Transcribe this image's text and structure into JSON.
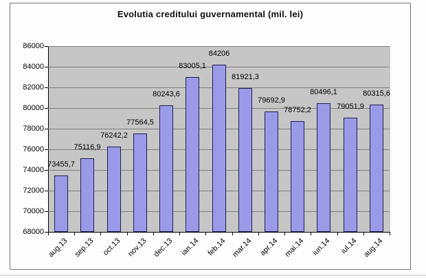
{
  "chart_data": {
    "type": "bar",
    "title": "Evolutia creditului guvernamental (mil. lei)",
    "categories": [
      "aug.13",
      "sep.13",
      "oct.13",
      "nov.13",
      "dec.13",
      "ian.14",
      "feb.14",
      "mar.14",
      "apr.14",
      "mai.14",
      "iun.14",
      "iul.14",
      "aug.14"
    ],
    "values": [
      73455.7,
      75116.9,
      76242.2,
      77564.5,
      80243.6,
      83005.1,
      84206,
      81921.3,
      79692.9,
      78752.2,
      80496.1,
      79051.9,
      80315.6
    ],
    "value_labels": [
      "73455,7",
      "75116,9",
      "76242,2",
      "77564,5",
      "80243,6",
      "83005,1",
      "84206",
      "81921,3",
      "79692,9",
      "78752,2",
      "80496,1",
      "79051,9",
      "80315,6"
    ],
    "xlabel": "",
    "ylabel": "",
    "ylim": [
      68000,
      86000
    ],
    "ytick_step": 2000,
    "ytick_labels": [
      "86000",
      "84000",
      "82000",
      "80000",
      "78000",
      "76000",
      "74000",
      "72000",
      "70000",
      "68000"
    ],
    "grid": true,
    "legend": "none",
    "colors": {
      "bar_fill": "#9a9ae8",
      "bar_border": "#1e1e52",
      "plot_background": "#c6c6c6",
      "gridline": "#7d7d7d",
      "axis": "#000000",
      "text": "#000000",
      "frame_border": "#757575"
    }
  }
}
